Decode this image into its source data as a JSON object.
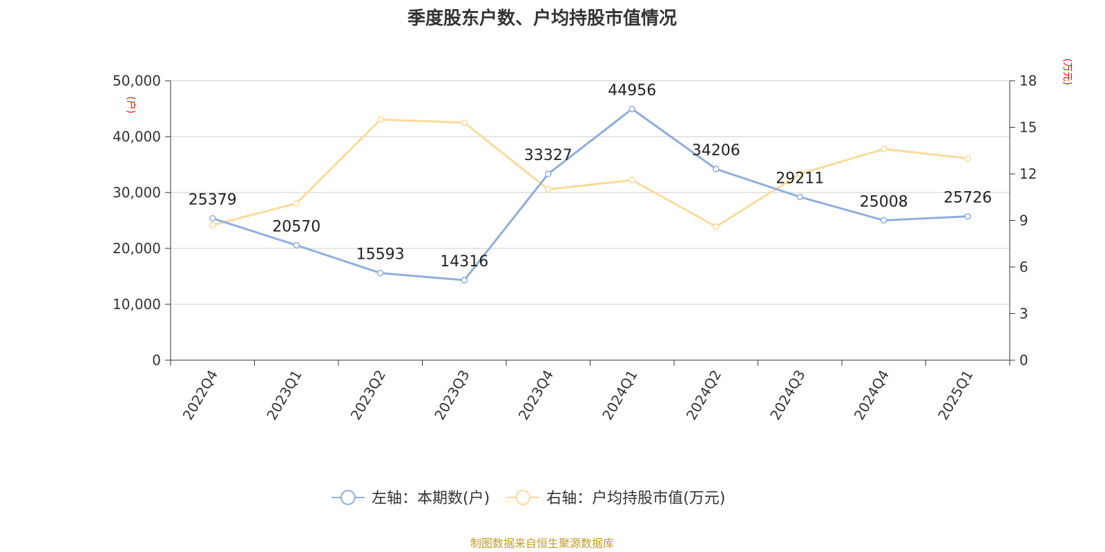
{
  "title": "季度股东户数、户均持股市值情况",
  "source": "制图数据来自恒生聚源数据库",
  "colors": {
    "holders": "#8EAEDC",
    "value": "#FDDA9A",
    "axis_unit": "#FF0000",
    "grid": "#CCCCCC",
    "axis": "#333333",
    "text": "#333333",
    "source": "#C49A2A"
  },
  "chart_data": {
    "type": "line",
    "title": "季度股东户数、户均持股市值情况",
    "categories": [
      "2022Q4",
      "2023Q1",
      "2023Q2",
      "2023Q3",
      "2023Q4",
      "2024Q1",
      "2024Q2",
      "2024Q3",
      "2024Q4",
      "2025Q1"
    ],
    "y_left": {
      "unit": "(户)",
      "range": [
        0,
        50000
      ],
      "ticks": [
        0,
        10000,
        20000,
        30000,
        40000,
        50000
      ],
      "tick_labels": [
        "0",
        "10,000",
        "20,000",
        "30,000",
        "40,000",
        "50,000"
      ]
    },
    "y_right": {
      "unit": "(万元)",
      "range": [
        0,
        18
      ],
      "ticks": [
        0,
        3,
        6,
        9,
        12,
        15,
        18
      ],
      "tick_labels": [
        "0",
        "3",
        "6",
        "9",
        "12",
        "15",
        "18"
      ]
    },
    "grid": true,
    "legend_position": "bottom",
    "series": [
      {
        "name": "左轴：本期数(户)",
        "axis": "left",
        "color": "#8EAEDC",
        "values": [
          25379,
          20570,
          15593,
          14316,
          33327,
          44956,
          34206,
          29211,
          25008,
          25726
        ],
        "labels": [
          "25379",
          "20570",
          "15593",
          "14316",
          "33327",
          "44956",
          "34206",
          "29211",
          "25008",
          "25726"
        ]
      },
      {
        "name": "右轴：户均持股市值(万元)",
        "axis": "right",
        "color": "#FDDA9A",
        "values": [
          8.7,
          10.1,
          15.5,
          15.3,
          11.0,
          11.6,
          8.6,
          12.0,
          13.6,
          13.0
        ]
      }
    ]
  }
}
